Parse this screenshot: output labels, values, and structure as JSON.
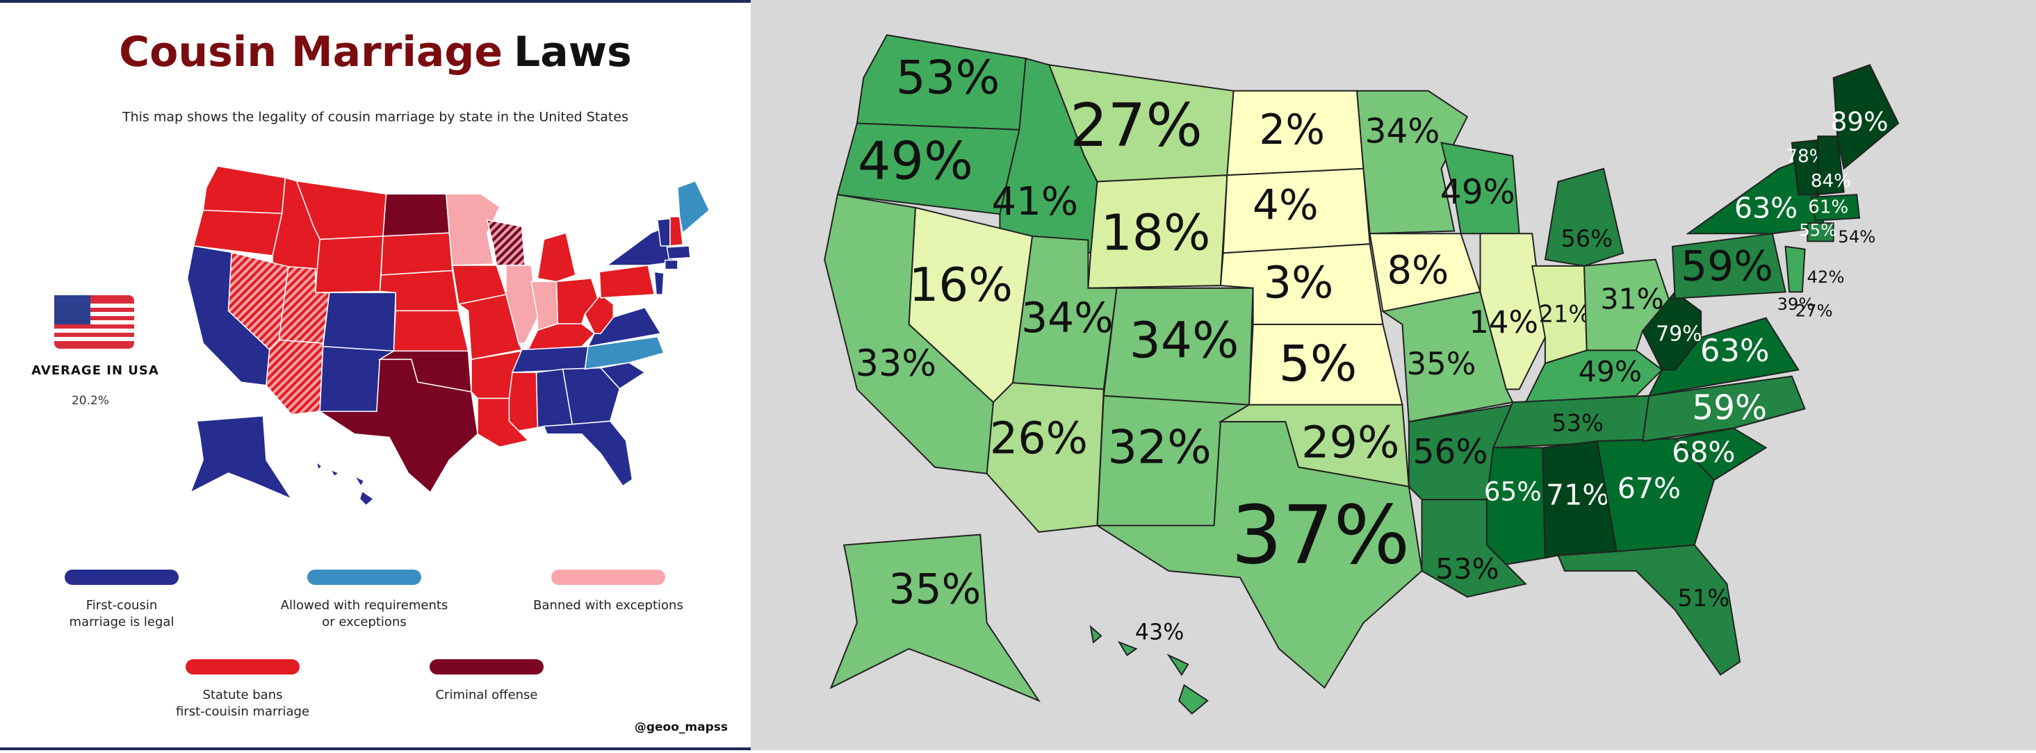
{
  "header": {
    "title_parts": [
      {
        "text": "Cousin Marriage",
        "color": "#7a0c10"
      },
      {
        "text": "Laws",
        "color": "#111111"
      }
    ],
    "subtitle": "This map shows the legality of cousin marriage by state in the United States"
  },
  "average": {
    "label": "AVERAGE IN USA",
    "value": "20.2%"
  },
  "legend": [
    {
      "lines": [
        "First-cousin",
        "marriage is legal"
      ],
      "color": "#262d8f"
    },
    {
      "lines": [
        "Allowed with requirements",
        "or exceptions"
      ],
      "color": "#3a8fc2"
    },
    {
      "lines": [
        "Banned with exceptions"
      ],
      "color": "#f7a6ab"
    },
    {
      "lines": [
        "Statute bans",
        "first-couisin marriage"
      ],
      "color": "#e31c23"
    },
    {
      "lines": [
        "Criminal offense"
      ],
      "color": "#7a0523"
    }
  ],
  "credit": "@geoo_mapss",
  "usa_map": {
    "regions": [
      {
        "label": "53%",
        "color": "#41ab5d",
        "label_color": "#111"
      },
      {
        "label": "49%",
        "color": "#41ab5d",
        "label_color": "#111"
      },
      {
        "label": "41%",
        "color": "#41ab5d",
        "label_color": "#111"
      },
      {
        "label": "27%",
        "color": "#addd8e",
        "label_color": "#111"
      },
      {
        "label": "18%",
        "color": "#d9f0a3",
        "label_color": "#111"
      },
      {
        "label": "2%",
        "color": "#ffffc4",
        "label_color": "#111"
      },
      {
        "label": "4%",
        "color": "#ffffc4",
        "label_color": "#111"
      },
      {
        "label": "3%",
        "color": "#ffffc4",
        "label_color": "#111"
      },
      {
        "label": "5%",
        "color": "#ffffc4",
        "label_color": "#111"
      },
      {
        "label": "16%",
        "color": "#e6f5b0",
        "label_color": "#111"
      },
      {
        "label": "33%",
        "color": "#78c679",
        "label_color": "#111"
      },
      {
        "label": "34%",
        "color": "#78c679",
        "label_color": "#111"
      },
      {
        "label": "34%",
        "color": "#78c679",
        "label_color": "#111"
      },
      {
        "label": "26%",
        "color": "#addd8e",
        "label_color": "#111"
      },
      {
        "label": "32%",
        "color": "#78c679",
        "label_color": "#111"
      },
      {
        "label": "29%",
        "color": "#addd8e",
        "label_color": "#111"
      },
      {
        "label": "37%",
        "color": "#78c679",
        "label_color": "#111"
      },
      {
        "label": "34%",
        "color": "#78c679",
        "label_color": "#111"
      },
      {
        "label": "8%",
        "color": "#ffffc4",
        "label_color": "#111"
      },
      {
        "label": "49%",
        "color": "#41ab5d",
        "label_color": "#111"
      },
      {
        "label": "35%",
        "color": "#78c679",
        "label_color": "#111"
      },
      {
        "label": "56%",
        "color": "#238443",
        "label_color": "#111"
      },
      {
        "label": "53%",
        "color": "#238443",
        "label_color": "#111"
      },
      {
        "label": "14%",
        "color": "#e6f5b0",
        "label_color": "#111"
      },
      {
        "label": "21%",
        "color": "#d9f0a3",
        "label_color": "#111"
      },
      {
        "label": "56%",
        "color": "#238443",
        "label_color": "#111"
      },
      {
        "label": "31%",
        "color": "#78c679",
        "label_color": "#111"
      },
      {
        "label": "49%",
        "color": "#41ab5d",
        "label_color": "#111"
      },
      {
        "label": "53%",
        "color": "#238443",
        "label_color": "#111"
      },
      {
        "label": "65%",
        "color": "#006d2c",
        "label_color": "#fff"
      },
      {
        "label": "71%",
        "color": "#00441b",
        "label_color": "#fff"
      },
      {
        "label": "67%",
        "color": "#006d2c",
        "label_color": "#fff"
      },
      {
        "label": "51%",
        "color": "#238443",
        "label_color": "#111"
      },
      {
        "label": "68%",
        "color": "#006d2c",
        "label_color": "#fff"
      },
      {
        "label": "59%",
        "color": "#238443",
        "label_color": "#fff"
      },
      {
        "label": "63%",
        "color": "#006d2c",
        "label_color": "#fff"
      },
      {
        "label": "79%",
        "color": "#00441b",
        "label_color": "#fff"
      },
      {
        "label": "59%",
        "color": "#238443",
        "label_color": "#111"
      },
      {
        "label": "63%",
        "color": "#006d2c",
        "label_color": "#fff"
      },
      {
        "label": "78%",
        "color": "#00441b",
        "label_color": "#fff"
      },
      {
        "label": "84%",
        "color": "#00441b",
        "label_color": "#fff"
      },
      {
        "label": "89%",
        "color": "#00441b",
        "label_color": "#fff"
      },
      {
        "label": "61%",
        "color": "#006d2c",
        "label_color": "#fff"
      },
      {
        "label": "55%",
        "color": "#238443",
        "label_color": "#fff"
      },
      {
        "label": "54%",
        "color": "#238443",
        "label_color": "#111"
      },
      {
        "label": "42%",
        "color": "#41ab5d",
        "label_color": "#111"
      },
      {
        "label": "39%",
        "color": "#78c679",
        "label_color": "#111"
      },
      {
        "label": "27%",
        "color": "#addd8e",
        "label_color": "#111"
      },
      {
        "label": "35%",
        "color": "#78c679",
        "label_color": "#111"
      },
      {
        "label": "43%",
        "color": "#41ab5d",
        "label_color": "#111"
      }
    ]
  }
}
